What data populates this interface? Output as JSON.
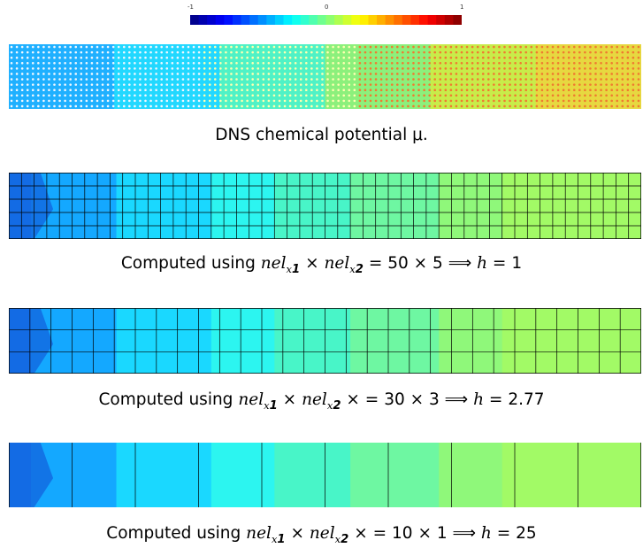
{
  "colorbar": {
    "min_label": "-1",
    "mid_label": "0",
    "max_label": "1",
    "colormap": "jet",
    "range": [
      -1,
      1
    ]
  },
  "panels": [
    {
      "id": "dns",
      "caption": "DNS chemical potential μ.",
      "kind": "dots",
      "value_range_left_to_right": [
        -0.3,
        0.6
      ]
    },
    {
      "id": "mesh-50x5",
      "caption_prefix": "Computed using",
      "nel_x1": "nel",
      "sub1": "x",
      "sub1_index": "1",
      "nel_x2": "nel",
      "sub2": "x",
      "sub2_index": "2",
      "times": "×",
      "equals": "=",
      "grid": "50 × 5",
      "implies": "⟹",
      "h_label": "h",
      "h_equals": "=",
      "h_value": "1",
      "elements_x": 50,
      "elements_y": 5
    },
    {
      "id": "mesh-30x3",
      "caption_prefix": "Computed using",
      "nel_x1": "nel",
      "sub1": "x",
      "sub1_index": "1",
      "nel_x2": "nel",
      "sub2": "x",
      "sub2_index": "2",
      "times": "×",
      "equals": "=",
      "grid": "30 × 3",
      "implies": "⟹",
      "h_label": "h",
      "h_equals": "=",
      "h_value": "2.77",
      "elements_x": 30,
      "elements_y": 3
    },
    {
      "id": "mesh-10x1",
      "caption_prefix": "Computed using",
      "nel_x1": "nel",
      "sub1": "x",
      "sub1_index": "1",
      "nel_x2": "nel",
      "sub2": "x",
      "sub2_index": "2",
      "times": "×",
      "equals": "=",
      "grid": "10 × 1",
      "implies": "⟹",
      "h_label": "h",
      "h_equals": "=",
      "h_value": "25",
      "elements_x": 10,
      "elements_y": 1
    }
  ],
  "field_colors": [
    "#1a7cf2",
    "#14a8ff",
    "#1ad8ff",
    "#2cf5f0",
    "#48f5c8",
    "#6ef7a2",
    "#8ff87a",
    "#a2fa66"
  ]
}
